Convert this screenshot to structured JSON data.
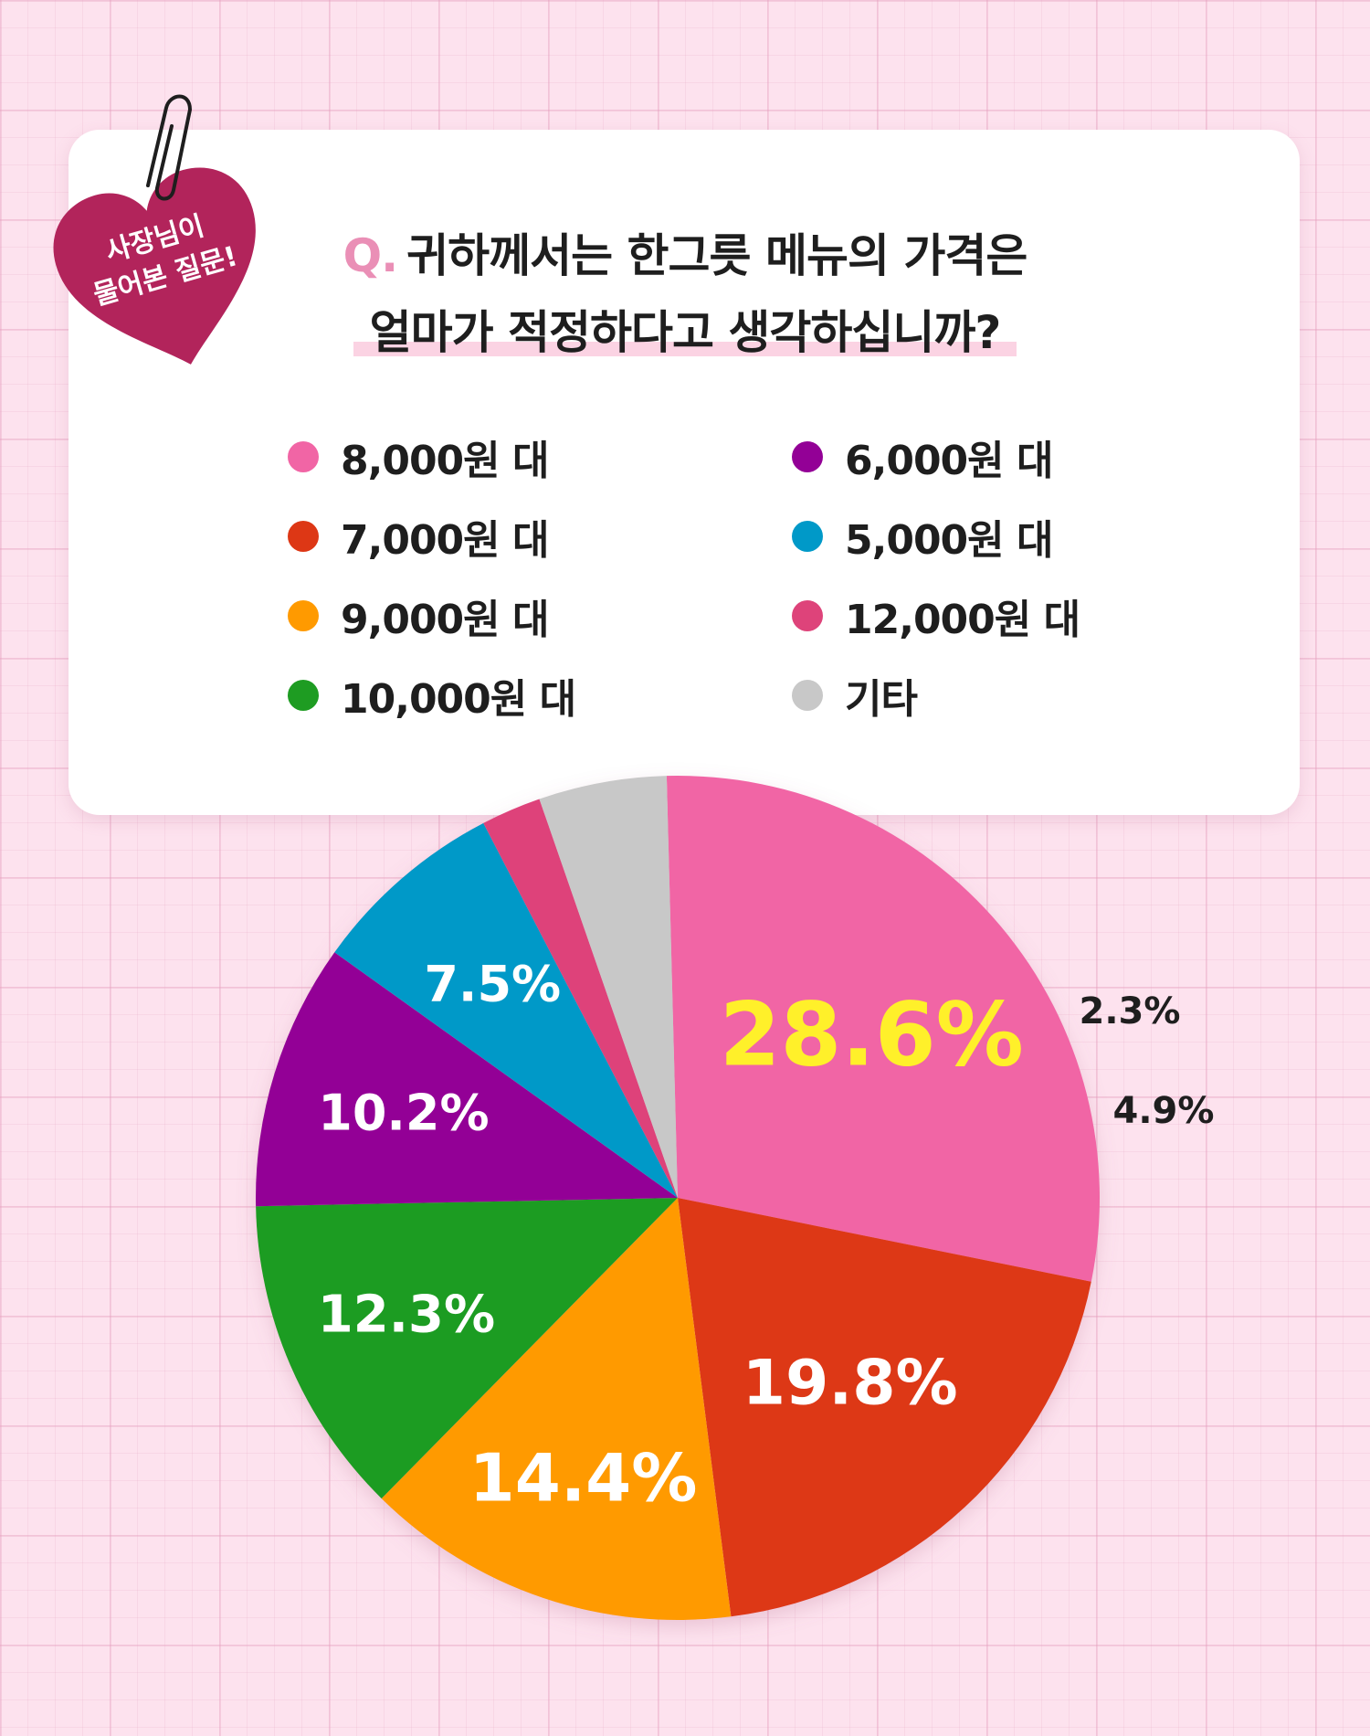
{
  "badge": {
    "line1": "사장님이",
    "line2": "물어본 질문!"
  },
  "question": {
    "prefix": "Q.",
    "line1": "귀하께서는 한그릇 메뉴의 가격은",
    "line2": "얼마가 적정하다고 생각하십니까?"
  },
  "legend": [
    {
      "label": "8,000원 대",
      "color": "#f165a5"
    },
    {
      "label": "7,000원 대",
      "color": "#dd3715"
    },
    {
      "label": "9,000원 대",
      "color": "#ff9a00"
    },
    {
      "label": "10,000원 대",
      "color": "#1e9c22"
    },
    {
      "label": "6,000원 대",
      "color": "#930096"
    },
    {
      "label": "5,000원 대",
      "color": "#0099c8"
    },
    {
      "label": "12,000원 대",
      "color": "#de437a"
    },
    {
      "label": "기타",
      "color": "#c8c8c8"
    }
  ],
  "chart_data": {
    "type": "pie",
    "title": "",
    "start_angle_deg": -1.5,
    "direction": "clockwise",
    "slices": [
      {
        "name": "8,000원 대",
        "value": 28.6,
        "label": "28.6%",
        "color": "#f165a5",
        "label_color": "#fff02a"
      },
      {
        "name": "7,000원 대",
        "value": 19.8,
        "label": "19.8%",
        "color": "#dd3715",
        "label_color": "#ffffff"
      },
      {
        "name": "9,000원 대",
        "value": 14.4,
        "label": "14.4%",
        "color": "#ff9a00",
        "label_color": "#ffffff"
      },
      {
        "name": "10,000원 대",
        "value": 12.3,
        "label": "12.3%",
        "color": "#1e9c22",
        "label_color": "#ffffff"
      },
      {
        "name": "6,000원 대",
        "value": 10.2,
        "label": "10.2%",
        "color": "#930096",
        "label_color": "#ffffff"
      },
      {
        "name": "5,000원 대",
        "value": 7.5,
        "label": "7.5%",
        "color": "#0099c8",
        "label_color": "#ffffff"
      },
      {
        "name": "12,000원 대",
        "value": 2.3,
        "label": "2.3%",
        "color": "#de437a",
        "label_color": "#1e1e1e"
      },
      {
        "name": "기타",
        "value": 4.9,
        "label": "4.9%",
        "color": "#c8c8c8",
        "label_color": "#1e1e1e"
      }
    ]
  }
}
